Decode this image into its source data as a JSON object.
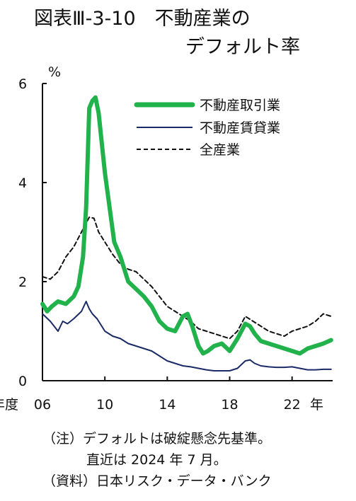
{
  "title": {
    "line1": "図表Ⅲ-3-10　不動産業の",
    "line2": "デフォルト率"
  },
  "notes": {
    "note1": "（注）デフォルトは破綻懸念先基準。",
    "note2": "直近は 2024 年 7 月。",
    "source": "（資料）日本リスク・データ・バンク"
  },
  "colors": {
    "real_estate_trading": "#22b24c",
    "real_estate_leasing": "#1a2a66",
    "all_industries": "#111111"
  },
  "chart_data": {
    "type": "line",
    "ylabel": "%",
    "xlabel": "年度",
    "ylim": [
      0,
      6
    ],
    "xlim": [
      2006,
      2024.6
    ],
    "y_ticks": [
      "0",
      "2",
      "4",
      "6"
    ],
    "x_ticks": [
      {
        "value": 2006,
        "label": "06"
      },
      {
        "value": 2010,
        "label": "10"
      },
      {
        "value": 2014,
        "label": "14"
      },
      {
        "value": 2018,
        "label": "18"
      },
      {
        "value": 2022,
        "label": "22"
      }
    ],
    "x_unit_label": "年",
    "grid": false,
    "legend_position": "top-right",
    "series": [
      {
        "name": "不動産取引業",
        "style": "thick-solid",
        "x": [
          2006.0,
          2006.3,
          2006.6,
          2007.0,
          2007.5,
          2008.0,
          2008.3,
          2008.6,
          2008.8,
          2009.0,
          2009.2,
          2009.4,
          2009.6,
          2009.8,
          2010.0,
          2010.3,
          2010.6,
          2011.0,
          2011.5,
          2012.0,
          2012.5,
          2013.0,
          2013.5,
          2014.0,
          2014.5,
          2015.0,
          2015.3,
          2015.6,
          2016.0,
          2016.3,
          2016.6,
          2017.0,
          2017.5,
          2018.0,
          2018.5,
          2019.0,
          2019.3,
          2019.6,
          2020.0,
          2020.5,
          2021.0,
          2021.5,
          2022.0,
          2022.5,
          2023.0,
          2023.5,
          2024.0,
          2024.5
        ],
        "y": [
          1.55,
          1.4,
          1.5,
          1.6,
          1.55,
          1.7,
          1.9,
          2.5,
          3.5,
          5.5,
          5.65,
          5.72,
          5.4,
          4.8,
          4.2,
          3.5,
          2.8,
          2.5,
          2.0,
          1.85,
          1.7,
          1.5,
          1.2,
          1.05,
          1.0,
          1.3,
          1.35,
          1.1,
          0.7,
          0.55,
          0.6,
          0.7,
          0.75,
          0.6,
          0.85,
          1.15,
          1.1,
          0.95,
          0.8,
          0.75,
          0.7,
          0.65,
          0.6,
          0.55,
          0.65,
          0.7,
          0.75,
          0.82
        ]
      },
      {
        "name": "不動産賃貸業",
        "style": "thin-solid",
        "x": [
          2006.0,
          2006.5,
          2007.0,
          2007.3,
          2007.6,
          2008.0,
          2008.5,
          2008.8,
          2009.0,
          2009.2,
          2009.5,
          2010.0,
          2010.5,
          2011.0,
          2011.5,
          2012.0,
          2012.5,
          2013.0,
          2013.5,
          2014.0,
          2014.5,
          2015.0,
          2015.5,
          2016.0,
          2016.5,
          2017.0,
          2017.5,
          2018.0,
          2018.5,
          2019.0,
          2019.3,
          2019.6,
          2020.0,
          2020.5,
          2021.0,
          2021.5,
          2022.0,
          2022.5,
          2023.0,
          2023.5,
          2024.0,
          2024.5
        ],
        "y": [
          1.35,
          1.2,
          1.0,
          1.2,
          1.15,
          1.25,
          1.4,
          1.6,
          1.45,
          1.35,
          1.25,
          1.0,
          0.9,
          0.85,
          0.75,
          0.7,
          0.65,
          0.6,
          0.5,
          0.4,
          0.35,
          0.3,
          0.28,
          0.25,
          0.22,
          0.2,
          0.2,
          0.2,
          0.25,
          0.4,
          0.42,
          0.35,
          0.3,
          0.28,
          0.27,
          0.27,
          0.28,
          0.25,
          0.22,
          0.22,
          0.23,
          0.23
        ]
      },
      {
        "name": "全産業",
        "style": "dashed",
        "x": [
          2006.0,
          2006.5,
          2007.0,
          2007.5,
          2008.0,
          2008.5,
          2009.0,
          2009.3,
          2009.6,
          2010.0,
          2010.5,
          2011.0,
          2011.5,
          2012.0,
          2012.5,
          2013.0,
          2013.5,
          2014.0,
          2014.5,
          2015.0,
          2015.5,
          2016.0,
          2016.5,
          2017.0,
          2017.5,
          2018.0,
          2018.5,
          2019.0,
          2019.5,
          2020.0,
          2020.5,
          2021.0,
          2021.5,
          2022.0,
          2022.5,
          2023.0,
          2023.5,
          2024.0,
          2024.5
        ],
        "y": [
          2.1,
          2.05,
          2.2,
          2.5,
          2.7,
          3.0,
          3.3,
          3.28,
          3.0,
          2.8,
          2.55,
          2.35,
          2.25,
          2.2,
          2.05,
          1.9,
          1.7,
          1.5,
          1.4,
          1.3,
          1.2,
          1.05,
          1.0,
          0.95,
          0.9,
          0.85,
          1.0,
          1.3,
          1.2,
          1.1,
          1.0,
          0.95,
          0.9,
          1.0,
          1.05,
          1.1,
          1.2,
          1.35,
          1.3
        ]
      }
    ]
  }
}
